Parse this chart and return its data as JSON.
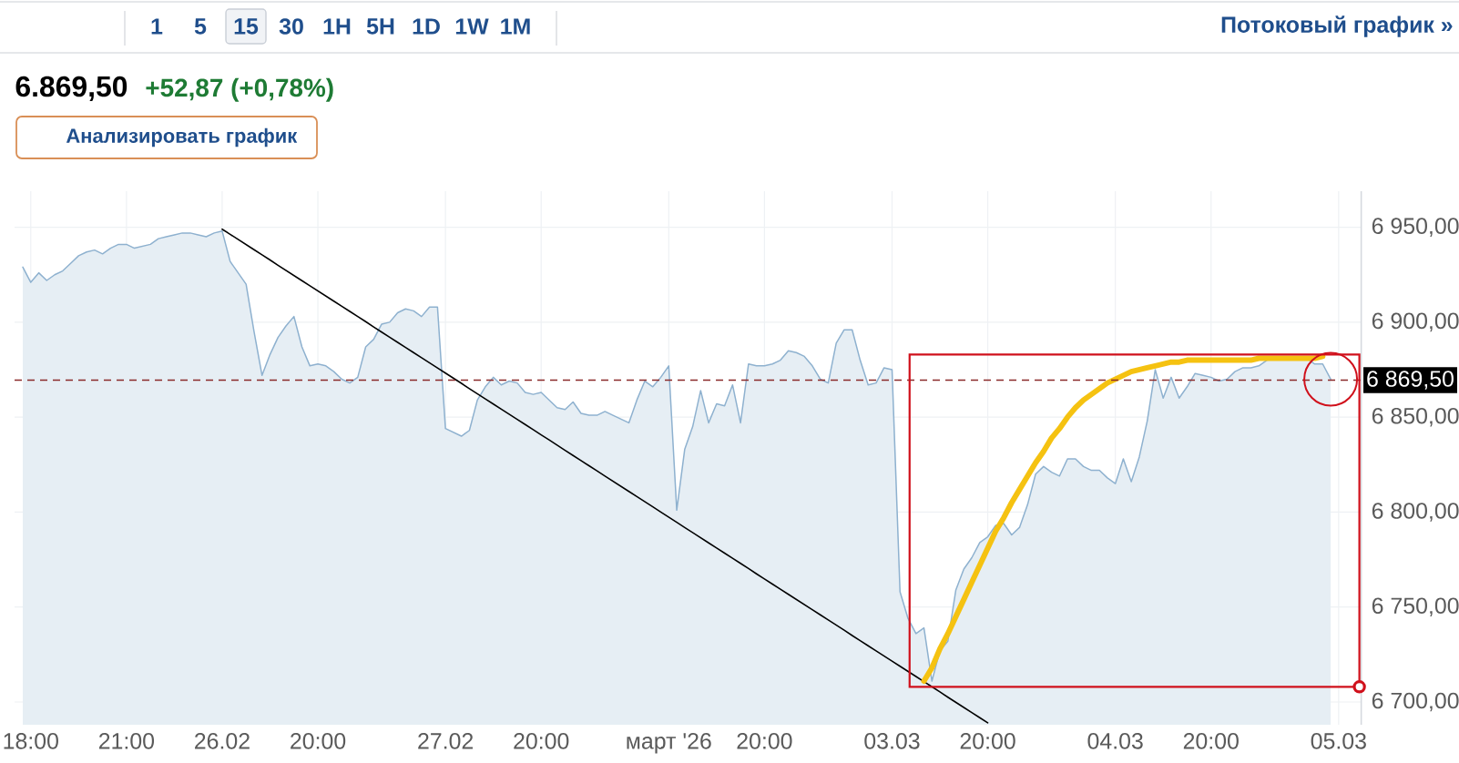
{
  "chart_data": {
    "type": "area",
    "title": "6.869,50",
    "subtitle": "+52,87 (+0,78%)",
    "annotations": [
      "1",
      "5",
      "15",
      "30",
      "1H",
      "5H",
      "1D",
      "1W",
      "1M",
      "Потоковый график »",
      "Анализировать график"
    ],
    "categories": [
      null,
      "18:00",
      null,
      null,
      null,
      null,
      null,
      null,
      null,
      null,
      null,
      null,
      null,
      "21:00",
      null,
      null,
      null,
      null,
      null,
      null,
      null,
      null,
      null,
      null,
      null,
      "26.02",
      null,
      null,
      null,
      null,
      null,
      null,
      null,
      null,
      null,
      null,
      null,
      "20:00",
      null,
      null,
      null,
      null,
      null,
      null,
      null,
      null,
      null,
      null,
      null,
      null,
      null,
      null,
      null,
      "27.02",
      null,
      null,
      null,
      null,
      null,
      null,
      null,
      null,
      null,
      null,
      null,
      "20:00",
      null,
      null,
      null,
      null,
      null,
      null,
      null,
      null,
      null,
      null,
      null,
      null,
      null,
      null,
      null,
      "март '26",
      null,
      null,
      null,
      null,
      null,
      null,
      null,
      null,
      null,
      null,
      null,
      "20:00",
      null,
      null,
      null,
      null,
      null,
      null,
      null,
      null,
      null,
      null,
      null,
      null,
      null,
      null,
      null,
      "03.03",
      null,
      null,
      null,
      null,
      null,
      null,
      null,
      null,
      null,
      null,
      null,
      "20:00",
      null,
      null,
      null,
      null,
      null,
      null,
      null,
      null,
      null,
      null,
      null,
      null,
      null,
      null,
      null,
      "04.03",
      null,
      null,
      null,
      null,
      null,
      null,
      null,
      null,
      null,
      null,
      null,
      "20:00",
      null,
      null,
      null,
      null,
      null,
      null,
      null,
      null,
      null,
      null,
      null,
      null,
      null,
      null,
      null,
      "05.03"
    ],
    "ylim": [
      6688,
      6969
    ],
    "yticks": [
      {
        "value": 6700,
        "label": "6 700,00"
      },
      {
        "value": 6750,
        "label": "6 750,00"
      },
      {
        "value": 6800,
        "label": "6 800,00"
      },
      {
        "value": 6850,
        "label": "6 850,00"
      },
      {
        "value": 6900,
        "label": "6 900,00"
      },
      {
        "value": 6950,
        "label": "6 950,00"
      }
    ],
    "grid": true,
    "ref_lines": [
      {
        "axis": "y",
        "value": 6869.5,
        "label": "6 869,50",
        "color": "#8a2a2a",
        "line_style": "dashed"
      }
    ],
    "series": [
      {
        "color": "#8eb1cf",
        "values": [
          6929,
          6921,
          6926,
          6922,
          6925,
          6927,
          6931,
          6935,
          6937,
          6938,
          6936,
          6939,
          6941,
          6941,
          6939,
          6940,
          6941,
          6944,
          6945,
          6946,
          6947,
          6947,
          6946,
          6945,
          6947,
          6948,
          6932,
          6926,
          6920,
          6895,
          6872,
          6883,
          6892,
          6898,
          6903,
          6887,
          6877,
          6878,
          6877,
          6874,
          6870,
          6868,
          6871,
          6887,
          6891,
          6899,
          6900,
          6905,
          6907,
          6906,
          6903,
          6908,
          6908,
          6844,
          6842,
          6840,
          6843,
          6859,
          6866,
          6871,
          6867,
          6869,
          6868,
          6863,
          6862,
          6863,
          6859,
          6855,
          6854,
          6858,
          6852,
          6851,
          6851,
          6853,
          6851,
          6849,
          6847,
          6859,
          6869,
          6866,
          6871,
          6877,
          6801,
          6833,
          6845,
          6864,
          6847,
          6857,
          6856,
          6867,
          6847,
          6878,
          6877,
          6877,
          6878,
          6880,
          6885,
          6884,
          6882,
          6877,
          6870,
          6868,
          6889,
          6896,
          6896,
          6880,
          6867,
          6868,
          6876,
          6875,
          6758,
          6744,
          6736,
          6739,
          6711,
          6727,
          6732,
          6759,
          6770,
          6776,
          6784,
          6787,
          6793,
          6794,
          6788,
          6792,
          6804,
          6820,
          6824,
          6821,
          6819,
          6828,
          6828,
          6824,
          6822,
          6822,
          6818,
          6815,
          6828,
          6816,
          6829,
          6848,
          6875,
          6860,
          6871,
          6860,
          6866,
          6873,
          6872,
          6871,
          6869,
          6870,
          6874,
          6876,
          6876,
          6877,
          6880,
          6881,
          6881,
          6881,
          6881,
          6881,
          6878,
          6878,
          6870,
          null
        ]
      },
      {
        "type": "line",
        "color": "#000000",
        "values": [
          null,
          null,
          null,
          null,
          null,
          null,
          null,
          null,
          null,
          null,
          null,
          null,
          null,
          null,
          null,
          null,
          null,
          null,
          null,
          null,
          null,
          null,
          null,
          null,
          null,
          6949.0,
          6946.3,
          6943.6,
          6940.9,
          6938.2,
          6935.5,
          6932.8,
          6930.0,
          6927.3,
          6924.6,
          6921.9,
          6919.2,
          6916.5,
          6913.8,
          6911.1,
          6908.4,
          6905.7,
          6903.0,
          6900.3,
          6897.5,
          6894.8,
          6892.1,
          6889.4,
          6886.7,
          6884.0,
          6881.3,
          6878.6,
          6875.9,
          6873.2,
          6870.5,
          6867.8,
          6865.0,
          6862.3,
          6859.6,
          6856.9,
          6854.2,
          6851.5,
          6848.8,
          6846.1,
          6843.4,
          6840.7,
          6838.0,
          6835.3,
          6832.5,
          6829.8,
          6827.1,
          6824.4,
          6821.7,
          6819.0,
          6816.3,
          6813.6,
          6810.9,
          6808.2,
          6805.5,
          6802.8,
          6800.0,
          6797.3,
          6794.6,
          6791.9,
          6789.2,
          6786.5,
          6783.8,
          6781.1,
          6778.4,
          6775.7,
          6773.0,
          6770.3,
          6767.5,
          6764.8,
          6762.1,
          6759.4,
          6756.7,
          6754.0,
          6751.3,
          6748.6,
          6745.9,
          6743.2,
          6740.5,
          6737.8,
          6735.0,
          6732.3,
          6729.6,
          6726.9,
          6724.2,
          6721.5,
          6718.8,
          6716.1,
          6713.4,
          6710.7,
          6708.0,
          6705.3,
          6702.5,
          6699.8,
          6697.1,
          6694.4,
          6691.7,
          6689.0,
          null,
          null,
          null,
          null,
          null,
          null,
          null,
          null,
          null,
          null,
          null,
          null,
          null,
          null,
          null,
          null,
          null,
          null,
          null,
          null,
          null,
          null,
          null,
          null,
          null,
          null,
          null,
          null,
          null,
          null,
          null,
          null,
          null,
          null,
          null,
          null,
          null,
          null,
          null,
          null,
          null,
          null,
          null,
          null
        ]
      },
      {
        "type": "line",
        "color": "#f5c211",
        "values": [
          null,
          null,
          null,
          null,
          null,
          null,
          null,
          null,
          null,
          null,
          null,
          null,
          null,
          null,
          null,
          null,
          null,
          null,
          null,
          null,
          null,
          null,
          null,
          null,
          null,
          null,
          null,
          null,
          null,
          null,
          null,
          null,
          null,
          null,
          null,
          null,
          null,
          null,
          null,
          null,
          null,
          null,
          null,
          null,
          null,
          null,
          null,
          null,
          null,
          null,
          null,
          null,
          null,
          null,
          null,
          null,
          null,
          null,
          null,
          null,
          null,
          null,
          null,
          null,
          null,
          null,
          null,
          null,
          null,
          null,
          null,
          null,
          null,
          null,
          null,
          null,
          null,
          null,
          null,
          null,
          null,
          null,
          null,
          null,
          null,
          null,
          null,
          null,
          null,
          null,
          null,
          null,
          null,
          null,
          null,
          null,
          null,
          null,
          null,
          null,
          null,
          null,
          null,
          null,
          null,
          null,
          null,
          null,
          null,
          null,
          null,
          null,
          null,
          6711,
          6718,
          6728,
          6736,
          6745,
          6754,
          6763,
          6772,
          6781,
          6790,
          6797,
          6805,
          6812,
          6819,
          6826,
          6832,
          6839,
          6844,
          6850,
          6855,
          6859,
          6862,
          6865,
          6868,
          6870,
          6872,
          6874,
          6875,
          6876,
          6877,
          6878,
          6879,
          6879,
          6880,
          6880,
          6880,
          6880,
          6880,
          6880,
          6880,
          6880,
          6880,
          6881,
          6881,
          6881,
          6881,
          6881,
          6881,
          6881,
          6881,
          6882,
          null,
          null
        ]
      },
      {
        "type": "bubble",
        "color": "#d0101b",
        "values": [
          null,
          null,
          null,
          null,
          null,
          null,
          null,
          null,
          null,
          null,
          null,
          null,
          null,
          null,
          null,
          null,
          null,
          null,
          null,
          null,
          null,
          null,
          null,
          null,
          null,
          null,
          null,
          null,
          null,
          null,
          null,
          null,
          null,
          null,
          null,
          null,
          null,
          null,
          null,
          null,
          null,
          null,
          null,
          null,
          null,
          null,
          null,
          null,
          null,
          null,
          null,
          null,
          null,
          null,
          null,
          null,
          null,
          null,
          null,
          null,
          null,
          null,
          null,
          null,
          null,
          null,
          null,
          null,
          null,
          null,
          null,
          null,
          null,
          null,
          null,
          null,
          null,
          null,
          null,
          null,
          null,
          null,
          null,
          null,
          null,
          null,
          null,
          null,
          null,
          null,
          null,
          null,
          null,
          null,
          null,
          null,
          null,
          null,
          null,
          null,
          null,
          null,
          null,
          null,
          null,
          null,
          null,
          null,
          null,
          null,
          null,
          null,
          null,
          null,
          null,
          null,
          null,
          null,
          null,
          null,
          null,
          null,
          null,
          null,
          null,
          null,
          null,
          null,
          null,
          null,
          null,
          null,
          null,
          null,
          null,
          null,
          null,
          null,
          null,
          null,
          null,
          null,
          null,
          null,
          null,
          null,
          null,
          null,
          null,
          null,
          null,
          null,
          null,
          null,
          null,
          null,
          null,
          null,
          null,
          null,
          null,
          null,
          null,
          null,
          6870,
          null
        ],
        "sizes": [
          null,
          null,
          null,
          null,
          null,
          null,
          null,
          null,
          null,
          null,
          null,
          null,
          null,
          null,
          null,
          null,
          null,
          null,
          null,
          null,
          null,
          null,
          null,
          null,
          null,
          null,
          null,
          null,
          null,
          null,
          null,
          null,
          null,
          null,
          null,
          null,
          null,
          null,
          null,
          null,
          null,
          null,
          null,
          null,
          null,
          null,
          null,
          null,
          null,
          null,
          null,
          null,
          null,
          null,
          null,
          null,
          null,
          null,
          null,
          null,
          null,
          null,
          null,
          null,
          null,
          null,
          null,
          null,
          null,
          null,
          null,
          null,
          null,
          null,
          null,
          null,
          null,
          null,
          null,
          null,
          null,
          null,
          null,
          null,
          null,
          null,
          null,
          null,
          null,
          null,
          null,
          null,
          null,
          null,
          null,
          null,
          null,
          null,
          null,
          null,
          null,
          null,
          null,
          null,
          null,
          null,
          null,
          null,
          null,
          null,
          null,
          null,
          null,
          null,
          null,
          null,
          null,
          null,
          null,
          null,
          null,
          null,
          null,
          null,
          null,
          null,
          null,
          null,
          null,
          null,
          null,
          null,
          null,
          null,
          null,
          null,
          null,
          null,
          null,
          null,
          null,
          null,
          null,
          null,
          null,
          null,
          null,
          null,
          null,
          null,
          null,
          null,
          null,
          null,
          null,
          null,
          null,
          null,
          null,
          null,
          null,
          null,
          null,
          null,
          1,
          null
        ]
      }
    ]
  }
}
